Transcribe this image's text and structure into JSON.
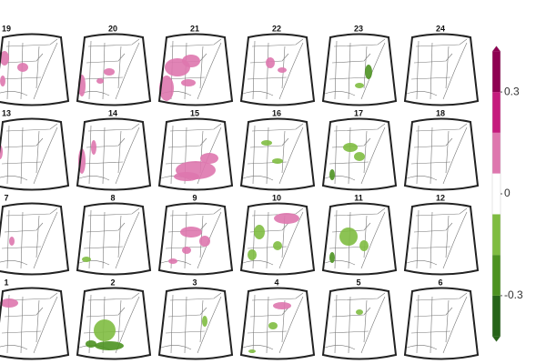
{
  "panels": [
    "19",
    "20",
    "21",
    "22",
    "23",
    "24",
    "13",
    "14",
    "15",
    "16",
    "17",
    "18",
    "7",
    "8",
    "9",
    "10",
    "11",
    "12",
    "1",
    "2",
    "3",
    "4",
    "5",
    "6"
  ],
  "colorbar": {
    "ticks": [
      0.3,
      0,
      -0.3
    ],
    "bounds": [
      -0.42,
      -0.3,
      -0.18,
      -0.06,
      0.06,
      0.18,
      0.3,
      0.42
    ],
    "colors": [
      "#276419",
      "#4d9221",
      "#7fbc41",
      "#ffffff",
      "#de77ae",
      "#c51b7d",
      "#8e0152"
    ]
  }
}
